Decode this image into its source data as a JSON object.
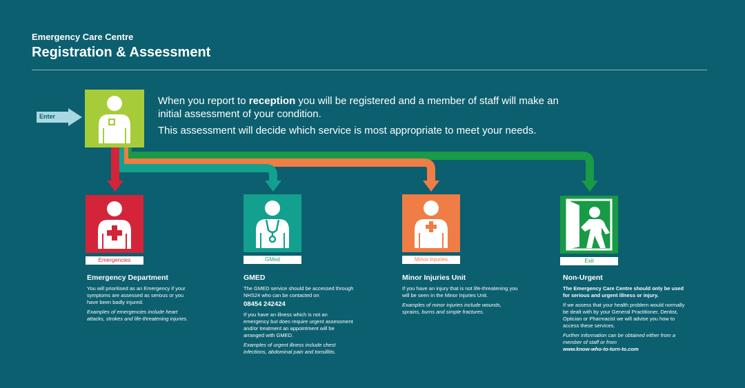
{
  "header": {
    "subtitle": "Emergency Care Centre",
    "title": "Registration & Assessment"
  },
  "enter_label": "Enter",
  "intro": {
    "line1_pre": "When you report to ",
    "line1_bold": "reception",
    "line1_post": " you will be registered and a member of staff will make an initial assessment of your condition.",
    "line2": "This assessment will decide which service is most appropriate to meet your needs."
  },
  "colors": {
    "background": "#0c5f6f",
    "reception": "#a7cc3a",
    "emergencies": "#d4243a",
    "gmed": "#13a08e",
    "minor": "#ef7d45",
    "exit": "#189a46"
  },
  "panels": [
    {
      "icon": "doctor-icon",
      "tag": "Emergencies"
    },
    {
      "icon": "stethoscope-person-icon",
      "tag": "GMed"
    },
    {
      "icon": "minor-injury-person-icon",
      "tag": "Minor Injuries"
    },
    {
      "icon": "exit-person-icon",
      "tag": "Exit"
    }
  ],
  "columns": {
    "ed": {
      "title": "Emergency Department",
      "p1": "You will prioritised as an Emergency if your symptoms are assessed as serious or you have been badly injured.",
      "p2": "Examples of emergencies include heart attacks, strokes and life-threatening injuries."
    },
    "gmed": {
      "title": "GMED",
      "p1": "The GMED service should be accessed through NHS24 who can be contacted on",
      "phone": "08454 242424",
      "p2": "If you have an illness which is not an emergency but does require urgent assessment and/or treatment an appointment will be arranged with GMED.",
      "p3": "Examples of urgent illness include chest infections, abdominal pain and tonsillitis."
    },
    "miu": {
      "title": "Minor Injuries Unit",
      "p1": "If you have an injury that is not life-threatening you will be seen in the Minor Injuries Unit.",
      "p2": "Examples of minor injuries include wounds, sprains, burns and simple fractures."
    },
    "nonurgent": {
      "title": "Non-Urgent",
      "p1": "The Emergency Care Centre should only be used for serious and urgent illness or injury.",
      "p2": "If we assess that your health problem would normally be dealt with by your General Practitioner, Dentist, Optician or Pharmacist we will advise you how to access these services.",
      "p3": "Further information can be obtained either from a member of staff or from",
      "link": "www.know-who-to-turn-to.com"
    }
  }
}
